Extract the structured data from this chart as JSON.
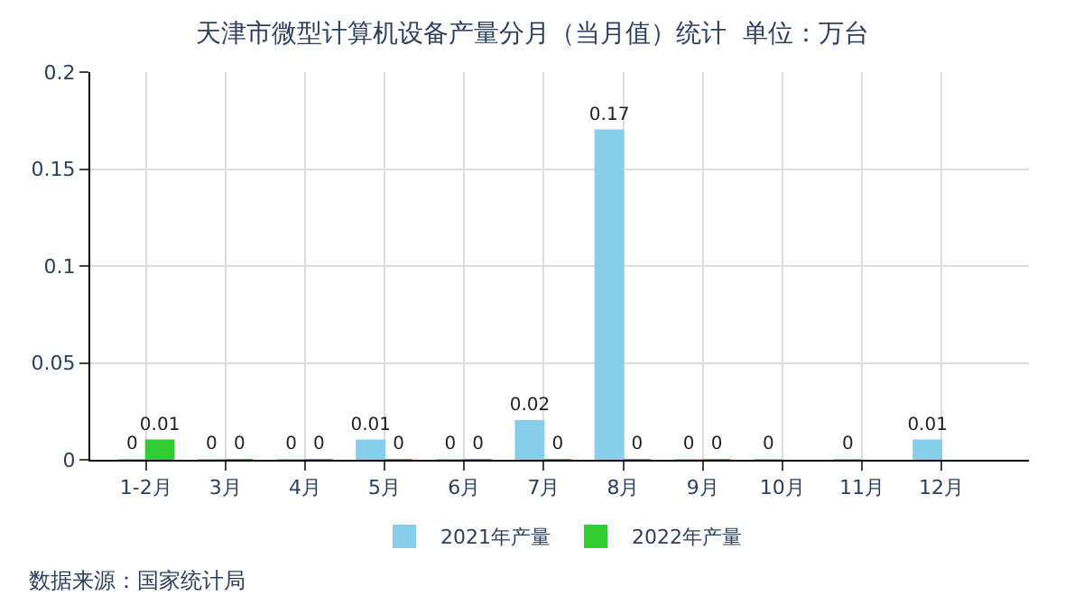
{
  "chart_data": {
    "type": "bar",
    "title": "天津市微型计算机设备产量分月（当月值）统计  单位：万台",
    "categories": [
      "1-2月",
      "3月",
      "4月",
      "5月",
      "6月",
      "7月",
      "8月",
      "9月",
      "10月",
      "11月",
      "12月"
    ],
    "series": [
      {
        "name": "2021年产量",
        "color": "#87ceeb",
        "values": [
          0,
          0,
          0,
          0.01,
          0,
          0.02,
          0.17,
          0,
          0,
          0,
          0.01
        ]
      },
      {
        "name": "2022年产量",
        "color": "#33cc33",
        "values": [
          0.01,
          0,
          0,
          0,
          0,
          0,
          0,
          0,
          null,
          null,
          null
        ]
      }
    ],
    "ylim": [
      0,
      0.2
    ],
    "yticks": [
      0,
      0.05,
      0.1,
      0.15,
      0.2
    ],
    "grid": true,
    "legend": "bottom",
    "data_labels": true,
    "annotations": [
      "数据来源：国家统计局"
    ]
  }
}
